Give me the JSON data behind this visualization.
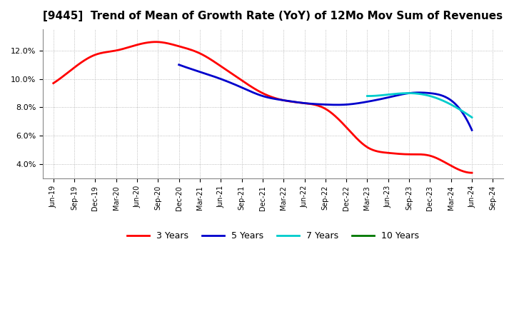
{
  "title": "[9445]  Trend of Mean of Growth Rate (YoY) of 12Mo Mov Sum of Revenues",
  "title_fontsize": 11,
  "background_color": "#ffffff",
  "plot_bg_color": "#ffffff",
  "grid_color": "#aaaaaa",
  "ylim": [
    0.03,
    0.135
  ],
  "yticks": [
    0.04,
    0.06,
    0.08,
    0.1,
    0.12
  ],
  "ytick_labels": [
    "4.0%",
    "6.0%",
    "8.0%",
    "10.0%",
    "12.0%"
  ],
  "x_labels": [
    "Jun-19",
    "Sep-19",
    "Dec-19",
    "Mar-20",
    "Jun-20",
    "Sep-20",
    "Dec-20",
    "Mar-21",
    "Jun-21",
    "Sep-21",
    "Dec-21",
    "Mar-22",
    "Jun-22",
    "Sep-22",
    "Dec-22",
    "Mar-23",
    "Jun-23",
    "Sep-23",
    "Dec-23",
    "Mar-24",
    "Jun-24",
    "Sep-24"
  ],
  "three_years_x": [
    0,
    1,
    2,
    3,
    4,
    5,
    6,
    7,
    8,
    9,
    10,
    11,
    12,
    13,
    14,
    15,
    16,
    17,
    18,
    19,
    20
  ],
  "three_years_y": [
    0.097,
    0.108,
    0.117,
    0.12,
    0.124,
    0.126,
    0.123,
    0.118,
    0.109,
    0.099,
    0.09,
    0.085,
    0.083,
    0.079,
    0.066,
    0.052,
    0.048,
    0.047,
    0.046,
    0.039,
    0.034
  ],
  "five_years_x": [
    6,
    7,
    8,
    9,
    10,
    11,
    12,
    13,
    14,
    15,
    16,
    17,
    18,
    19,
    20
  ],
  "five_years_y": [
    0.11,
    0.105,
    0.1,
    0.094,
    0.088,
    0.085,
    0.083,
    0.082,
    0.082,
    0.084,
    0.087,
    0.09,
    0.09,
    0.085,
    0.064
  ],
  "seven_years_x": [
    15,
    16,
    17,
    18,
    19,
    20
  ],
  "seven_years_y": [
    0.088,
    0.089,
    0.09,
    0.088,
    0.082,
    0.073
  ],
  "legend_colors": [
    "#ff0000",
    "#0000cc",
    "#00cccc",
    "#007700"
  ],
  "legend_labels": [
    "3 Years",
    "5 Years",
    "7 Years",
    "10 Years"
  ]
}
